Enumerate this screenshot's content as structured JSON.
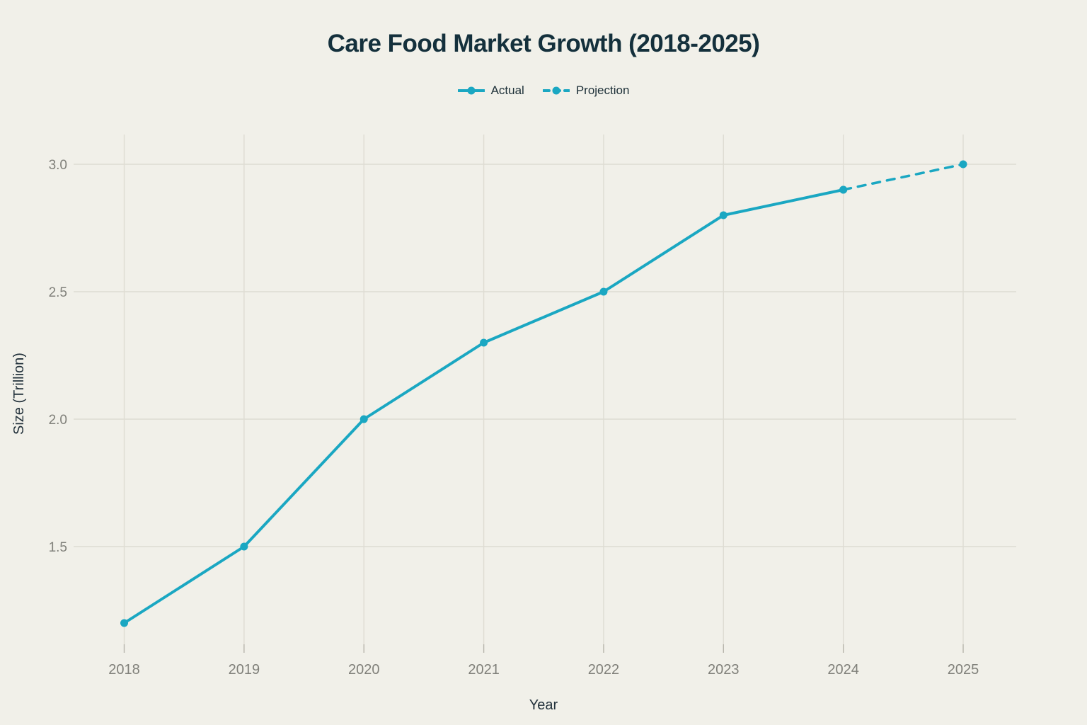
{
  "chart_data": {
    "type": "line",
    "title": "Care Food Market Growth (2018-2025)",
    "xlabel": "Year",
    "ylabel": "Size (Trillion)",
    "categories": [
      "2018",
      "2019",
      "2020",
      "2021",
      "2022",
      "2023",
      "2024",
      "2025"
    ],
    "yticks": [
      1.5,
      2.0,
      2.5,
      3.0
    ],
    "ytick_labels": [
      "1.5",
      "2.0",
      "2.5",
      "3.0"
    ],
    "ylim": [
      1.08,
      3.12
    ],
    "xlim": [
      2017.6,
      2025.45
    ],
    "grid": true,
    "legend_position": "top-center",
    "series": [
      {
        "name": "Actual",
        "line_style": "solid",
        "x": [
          2018,
          2019,
          2020,
          2021,
          2022,
          2023,
          2024
        ],
        "values": [
          1.2,
          1.5,
          2.0,
          2.3,
          2.5,
          2.8,
          2.9
        ]
      },
      {
        "name": "Projection",
        "line_style": "dashed",
        "x": [
          2024,
          2025
        ],
        "values": [
          2.9,
          3.0
        ]
      }
    ],
    "colors": {
      "line": "#1aa7c2",
      "background": "#f1f0e9",
      "grid": "#dedcd3",
      "tick": "#b7b5ac",
      "tick_text": "#80807a",
      "title_text": "#14303c",
      "axis_label_text": "#22313b",
      "legend_text": "#1d3038"
    }
  }
}
